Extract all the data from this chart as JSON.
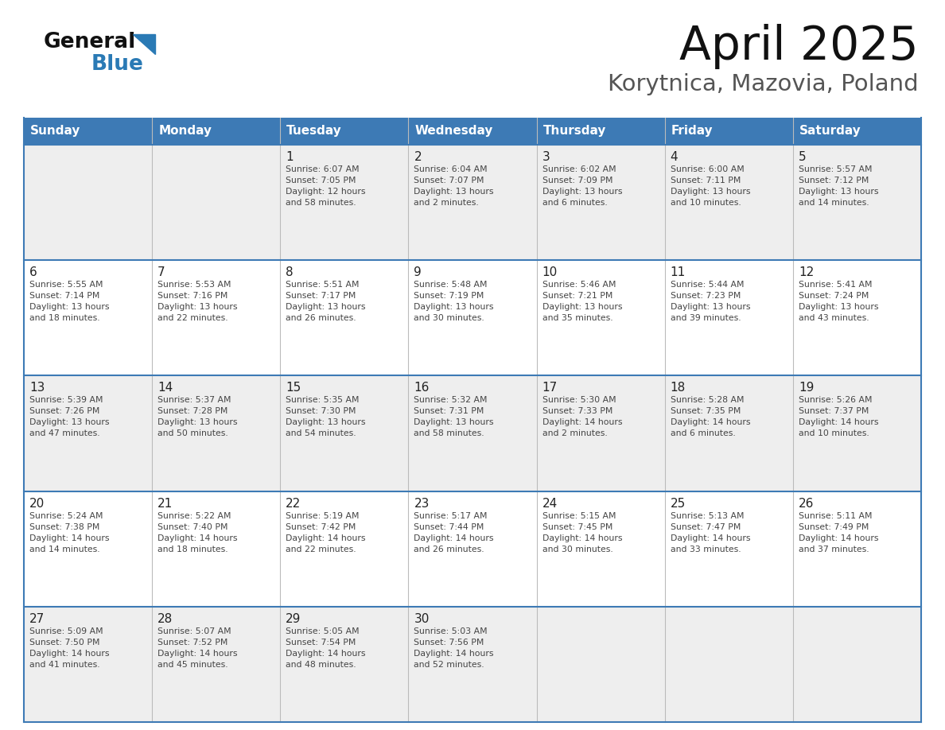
{
  "title": "April 2025",
  "subtitle": "Korytnica, Mazovia, Poland",
  "header_bg_color": "#3d7ab5",
  "header_text_color": "#ffffff",
  "weekdays": [
    "Sunday",
    "Monday",
    "Tuesday",
    "Wednesday",
    "Thursday",
    "Friday",
    "Saturday"
  ],
  "row_bg_even": "#eeeeee",
  "row_bg_odd": "#ffffff",
  "cell_border_color": "#3d7ab5",
  "day_number_color": "#222222",
  "day_text_color": "#444444",
  "calendar": [
    [
      {
        "day": "",
        "sunrise": "",
        "sunset": "",
        "daylight": ""
      },
      {
        "day": "",
        "sunrise": "",
        "sunset": "",
        "daylight": ""
      },
      {
        "day": "1",
        "sunrise": "Sunrise: 6:07 AM",
        "sunset": "Sunset: 7:05 PM",
        "daylight": "Daylight: 12 hours\nand 58 minutes."
      },
      {
        "day": "2",
        "sunrise": "Sunrise: 6:04 AM",
        "sunset": "Sunset: 7:07 PM",
        "daylight": "Daylight: 13 hours\nand 2 minutes."
      },
      {
        "day": "3",
        "sunrise": "Sunrise: 6:02 AM",
        "sunset": "Sunset: 7:09 PM",
        "daylight": "Daylight: 13 hours\nand 6 minutes."
      },
      {
        "day": "4",
        "sunrise": "Sunrise: 6:00 AM",
        "sunset": "Sunset: 7:11 PM",
        "daylight": "Daylight: 13 hours\nand 10 minutes."
      },
      {
        "day": "5",
        "sunrise": "Sunrise: 5:57 AM",
        "sunset": "Sunset: 7:12 PM",
        "daylight": "Daylight: 13 hours\nand 14 minutes."
      }
    ],
    [
      {
        "day": "6",
        "sunrise": "Sunrise: 5:55 AM",
        "sunset": "Sunset: 7:14 PM",
        "daylight": "Daylight: 13 hours\nand 18 minutes."
      },
      {
        "day": "7",
        "sunrise": "Sunrise: 5:53 AM",
        "sunset": "Sunset: 7:16 PM",
        "daylight": "Daylight: 13 hours\nand 22 minutes."
      },
      {
        "day": "8",
        "sunrise": "Sunrise: 5:51 AM",
        "sunset": "Sunset: 7:17 PM",
        "daylight": "Daylight: 13 hours\nand 26 minutes."
      },
      {
        "day": "9",
        "sunrise": "Sunrise: 5:48 AM",
        "sunset": "Sunset: 7:19 PM",
        "daylight": "Daylight: 13 hours\nand 30 minutes."
      },
      {
        "day": "10",
        "sunrise": "Sunrise: 5:46 AM",
        "sunset": "Sunset: 7:21 PM",
        "daylight": "Daylight: 13 hours\nand 35 minutes."
      },
      {
        "day": "11",
        "sunrise": "Sunrise: 5:44 AM",
        "sunset": "Sunset: 7:23 PM",
        "daylight": "Daylight: 13 hours\nand 39 minutes."
      },
      {
        "day": "12",
        "sunrise": "Sunrise: 5:41 AM",
        "sunset": "Sunset: 7:24 PM",
        "daylight": "Daylight: 13 hours\nand 43 minutes."
      }
    ],
    [
      {
        "day": "13",
        "sunrise": "Sunrise: 5:39 AM",
        "sunset": "Sunset: 7:26 PM",
        "daylight": "Daylight: 13 hours\nand 47 minutes."
      },
      {
        "day": "14",
        "sunrise": "Sunrise: 5:37 AM",
        "sunset": "Sunset: 7:28 PM",
        "daylight": "Daylight: 13 hours\nand 50 minutes."
      },
      {
        "day": "15",
        "sunrise": "Sunrise: 5:35 AM",
        "sunset": "Sunset: 7:30 PM",
        "daylight": "Daylight: 13 hours\nand 54 minutes."
      },
      {
        "day": "16",
        "sunrise": "Sunrise: 5:32 AM",
        "sunset": "Sunset: 7:31 PM",
        "daylight": "Daylight: 13 hours\nand 58 minutes."
      },
      {
        "day": "17",
        "sunrise": "Sunrise: 5:30 AM",
        "sunset": "Sunset: 7:33 PM",
        "daylight": "Daylight: 14 hours\nand 2 minutes."
      },
      {
        "day": "18",
        "sunrise": "Sunrise: 5:28 AM",
        "sunset": "Sunset: 7:35 PM",
        "daylight": "Daylight: 14 hours\nand 6 minutes."
      },
      {
        "day": "19",
        "sunrise": "Sunrise: 5:26 AM",
        "sunset": "Sunset: 7:37 PM",
        "daylight": "Daylight: 14 hours\nand 10 minutes."
      }
    ],
    [
      {
        "day": "20",
        "sunrise": "Sunrise: 5:24 AM",
        "sunset": "Sunset: 7:38 PM",
        "daylight": "Daylight: 14 hours\nand 14 minutes."
      },
      {
        "day": "21",
        "sunrise": "Sunrise: 5:22 AM",
        "sunset": "Sunset: 7:40 PM",
        "daylight": "Daylight: 14 hours\nand 18 minutes."
      },
      {
        "day": "22",
        "sunrise": "Sunrise: 5:19 AM",
        "sunset": "Sunset: 7:42 PM",
        "daylight": "Daylight: 14 hours\nand 22 minutes."
      },
      {
        "day": "23",
        "sunrise": "Sunrise: 5:17 AM",
        "sunset": "Sunset: 7:44 PM",
        "daylight": "Daylight: 14 hours\nand 26 minutes."
      },
      {
        "day": "24",
        "sunrise": "Sunrise: 5:15 AM",
        "sunset": "Sunset: 7:45 PM",
        "daylight": "Daylight: 14 hours\nand 30 minutes."
      },
      {
        "day": "25",
        "sunrise": "Sunrise: 5:13 AM",
        "sunset": "Sunset: 7:47 PM",
        "daylight": "Daylight: 14 hours\nand 33 minutes."
      },
      {
        "day": "26",
        "sunrise": "Sunrise: 5:11 AM",
        "sunset": "Sunset: 7:49 PM",
        "daylight": "Daylight: 14 hours\nand 37 minutes."
      }
    ],
    [
      {
        "day": "27",
        "sunrise": "Sunrise: 5:09 AM",
        "sunset": "Sunset: 7:50 PM",
        "daylight": "Daylight: 14 hours\nand 41 minutes."
      },
      {
        "day": "28",
        "sunrise": "Sunrise: 5:07 AM",
        "sunset": "Sunset: 7:52 PM",
        "daylight": "Daylight: 14 hours\nand 45 minutes."
      },
      {
        "day": "29",
        "sunrise": "Sunrise: 5:05 AM",
        "sunset": "Sunset: 7:54 PM",
        "daylight": "Daylight: 14 hours\nand 48 minutes."
      },
      {
        "day": "30",
        "sunrise": "Sunrise: 5:03 AM",
        "sunset": "Sunset: 7:56 PM",
        "daylight": "Daylight: 14 hours\nand 52 minutes."
      },
      {
        "day": "",
        "sunrise": "",
        "sunset": "",
        "daylight": ""
      },
      {
        "day": "",
        "sunrise": "",
        "sunset": "",
        "daylight": ""
      },
      {
        "day": "",
        "sunrise": "",
        "sunset": "",
        "daylight": ""
      }
    ]
  ]
}
